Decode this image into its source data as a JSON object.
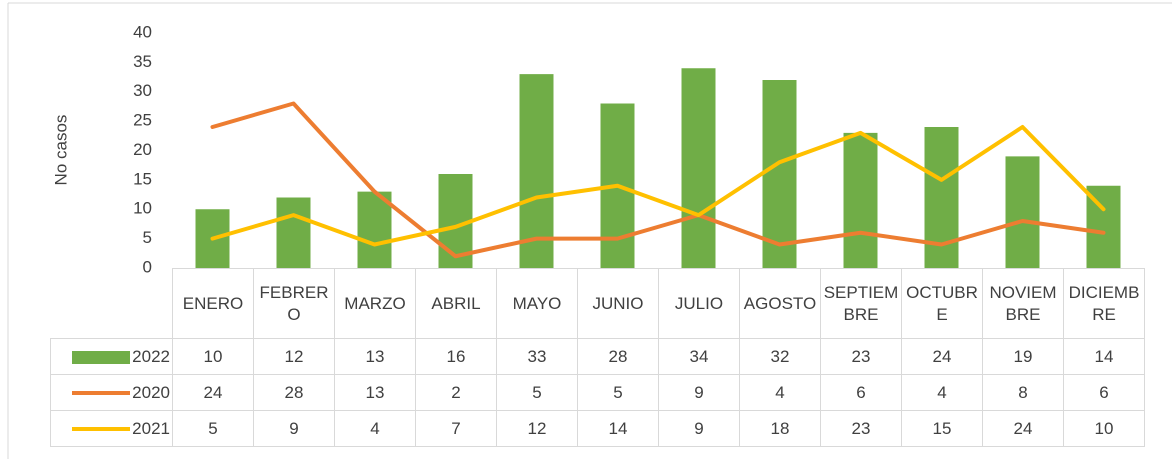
{
  "chart_data": {
    "type": "bar",
    "y_axis_label": "No casos",
    "categories": [
      "ENERO",
      "FEBRERO",
      "MARZO",
      "ABRIL",
      "MAYO",
      "JUNIO",
      "JULIO",
      "AGOSTO",
      "SEPTIEMBRE",
      "OCTUBRE",
      "NOVIEMBRE",
      "DICIEMBRE"
    ],
    "series": [
      {
        "name": "2022",
        "type": "bar",
        "color": "#70ad47",
        "values": [
          10,
          12,
          13,
          16,
          33,
          28,
          34,
          32,
          23,
          24,
          19,
          14
        ]
      },
      {
        "name": "2020",
        "type": "line",
        "color": "#ed7d31",
        "values": [
          24,
          28,
          13,
          2,
          5,
          5,
          9,
          4,
          6,
          4,
          8,
          6
        ]
      },
      {
        "name": "2021",
        "type": "line",
        "color": "#ffc000",
        "values": [
          5,
          9,
          4,
          7,
          12,
          14,
          9,
          18,
          23,
          15,
          24,
          10
        ]
      }
    ],
    "ylim": [
      0,
      40
    ],
    "yticks": [
      0,
      5,
      10,
      15,
      20,
      25,
      30,
      35,
      40
    ],
    "grid": false,
    "data_table": true
  }
}
